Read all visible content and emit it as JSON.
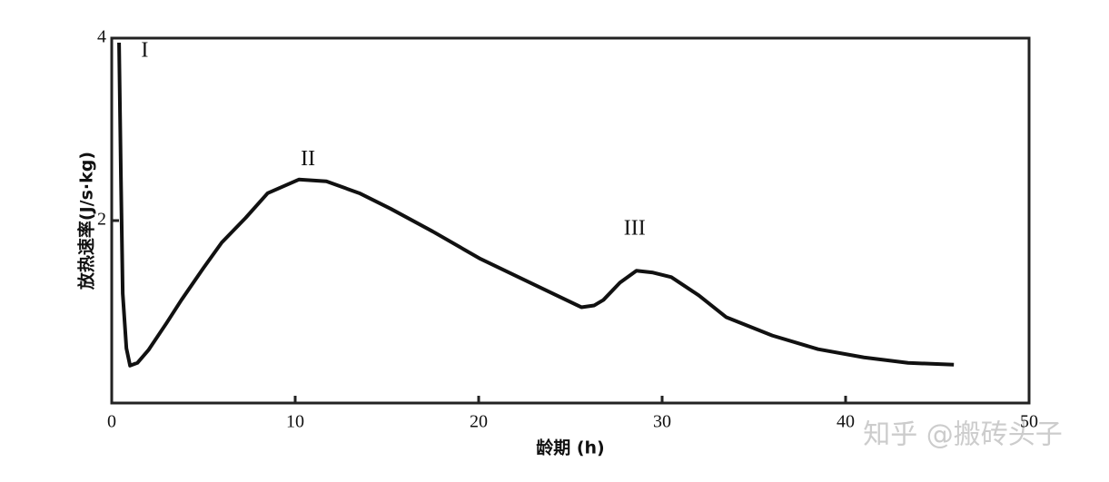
{
  "chart_data": {
    "type": "line",
    "y_label": "放热速率(J/s·kg)",
    "x_label": "龄期 (h)",
    "x": [
      0.4,
      0.5,
      0.6,
      0.8,
      1,
      1.4,
      2,
      3,
      3.8,
      5,
      6,
      7.3,
      8.5,
      10.2,
      11.7,
      13.5,
      15.2,
      17.5,
      20.1,
      23,
      25.6,
      26.3,
      26.8,
      27.7,
      28.6,
      29.5,
      30.5,
      32,
      33.5,
      36,
      38.5,
      41,
      43.4,
      45.9
    ],
    "series": [
      {
        "color": "#111111",
        "values": [
          3.95,
          2.5,
          1.2,
          0.6,
          0.41,
          0.44,
          0.58,
          0.88,
          1.13,
          1.48,
          1.76,
          2.03,
          2.3,
          2.45,
          2.43,
          2.3,
          2.13,
          1.88,
          1.58,
          1.3,
          1.05,
          1.07,
          1.13,
          1.32,
          1.45,
          1.43,
          1.38,
          1.18,
          0.94,
          0.74,
          0.59,
          0.5,
          0.44,
          0.42
        ]
      }
    ],
    "annotations": [
      {
        "text": "I",
        "x": 1.8,
        "y": 3.85
      },
      {
        "text": "II",
        "x": 10.7,
        "y": 2.66
      },
      {
        "text": "III",
        "x": 28.5,
        "y": 1.9
      }
    ],
    "xlim": [
      0,
      50
    ],
    "ylim": [
      0,
      4
    ],
    "xticks": [
      0,
      10,
      20,
      30,
      40,
      50
    ],
    "yticks": [
      2,
      4
    ],
    "watermark": "知乎 @搬砖头子"
  }
}
